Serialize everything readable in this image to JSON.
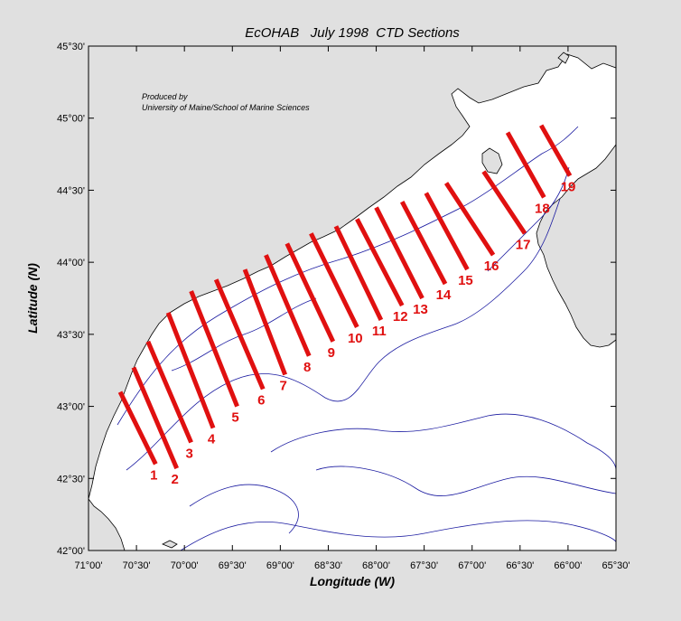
{
  "title": "EcOHAB   July 1998  CTD Sections",
  "credit": {
    "line1": "Produced by",
    "line2": "University of Maine/School of Marine Sciences"
  },
  "axes": {
    "xlabel": "Longitude (W)",
    "ylabel": "Latitude (N)",
    "x_ticks": [
      "71°00'",
      "70°30'",
      "70°00'",
      "69°30'",
      "69°00'",
      "68°30'",
      "68°00'",
      "67°30'",
      "67°00'",
      "66°30'",
      "66°00'",
      "65°30'"
    ],
    "y_ticks": [
      "42°00'",
      "42°30'",
      "43°00'",
      "43°30'",
      "44°00'",
      "44°30'",
      "45°00'",
      "45°30'"
    ],
    "lon_range_w": [
      71.0,
      65.5
    ],
    "lat_range_n": [
      42.0,
      45.5
    ]
  },
  "colors": {
    "section": "#e01010",
    "land": "#e0e0e0",
    "water": "#ffffff",
    "bathymetry": "#1a1aa0",
    "coast": "#000000"
  },
  "sections": [
    {
      "label": "1",
      "start": [
        70.67,
        43.1
      ],
      "end": [
        70.3,
        42.6
      ]
    },
    {
      "label": "2",
      "start": [
        70.53,
        43.27
      ],
      "end": [
        70.08,
        42.57
      ]
    },
    {
      "label": "3",
      "start": [
        70.38,
        43.45
      ],
      "end": [
        69.93,
        42.75
      ]
    },
    {
      "label": "4",
      "start": [
        70.17,
        43.65
      ],
      "end": [
        69.7,
        42.85
      ]
    },
    {
      "label": "5",
      "start": [
        69.93,
        43.8
      ],
      "end": [
        69.45,
        43.0
      ]
    },
    {
      "label": "6",
      "start": [
        69.67,
        43.88
      ],
      "end": [
        69.18,
        43.12
      ]
    },
    {
      "label": "7",
      "start": [
        69.37,
        43.95
      ],
      "end": [
        68.95,
        43.22
      ]
    },
    {
      "label": "8",
      "start": [
        69.15,
        44.05
      ],
      "end": [
        68.7,
        43.35
      ]
    },
    {
      "label": "9",
      "start": [
        68.93,
        44.13
      ],
      "end": [
        68.45,
        43.45
      ]
    },
    {
      "label": "10",
      "start": [
        68.68,
        44.2
      ],
      "end": [
        68.2,
        43.55
      ]
    },
    {
      "label": "11",
      "start": [
        68.42,
        44.25
      ],
      "end": [
        67.95,
        43.6
      ]
    },
    {
      "label": "12",
      "start": [
        68.2,
        44.3
      ],
      "end": [
        67.73,
        43.7
      ]
    },
    {
      "label": "13",
      "start": [
        68.0,
        44.38
      ],
      "end": [
        67.52,
        43.75
      ]
    },
    {
      "label": "14",
      "start": [
        67.73,
        44.42
      ],
      "end": [
        67.28,
        43.85
      ]
    },
    {
      "label": "15",
      "start": [
        67.48,
        44.48
      ],
      "end": [
        67.05,
        43.95
      ]
    },
    {
      "label": "16",
      "start": [
        67.27,
        44.55
      ],
      "end": [
        66.78,
        44.05
      ]
    },
    {
      "label": "17",
      "start": [
        66.88,
        44.63
      ],
      "end": [
        66.45,
        44.2
      ]
    },
    {
      "label": "18",
      "start": [
        66.63,
        44.9
      ],
      "end": [
        66.25,
        44.45
      ]
    },
    {
      "label": "19",
      "start": [
        66.28,
        44.95
      ],
      "end": [
        65.98,
        44.6
      ]
    }
  ]
}
